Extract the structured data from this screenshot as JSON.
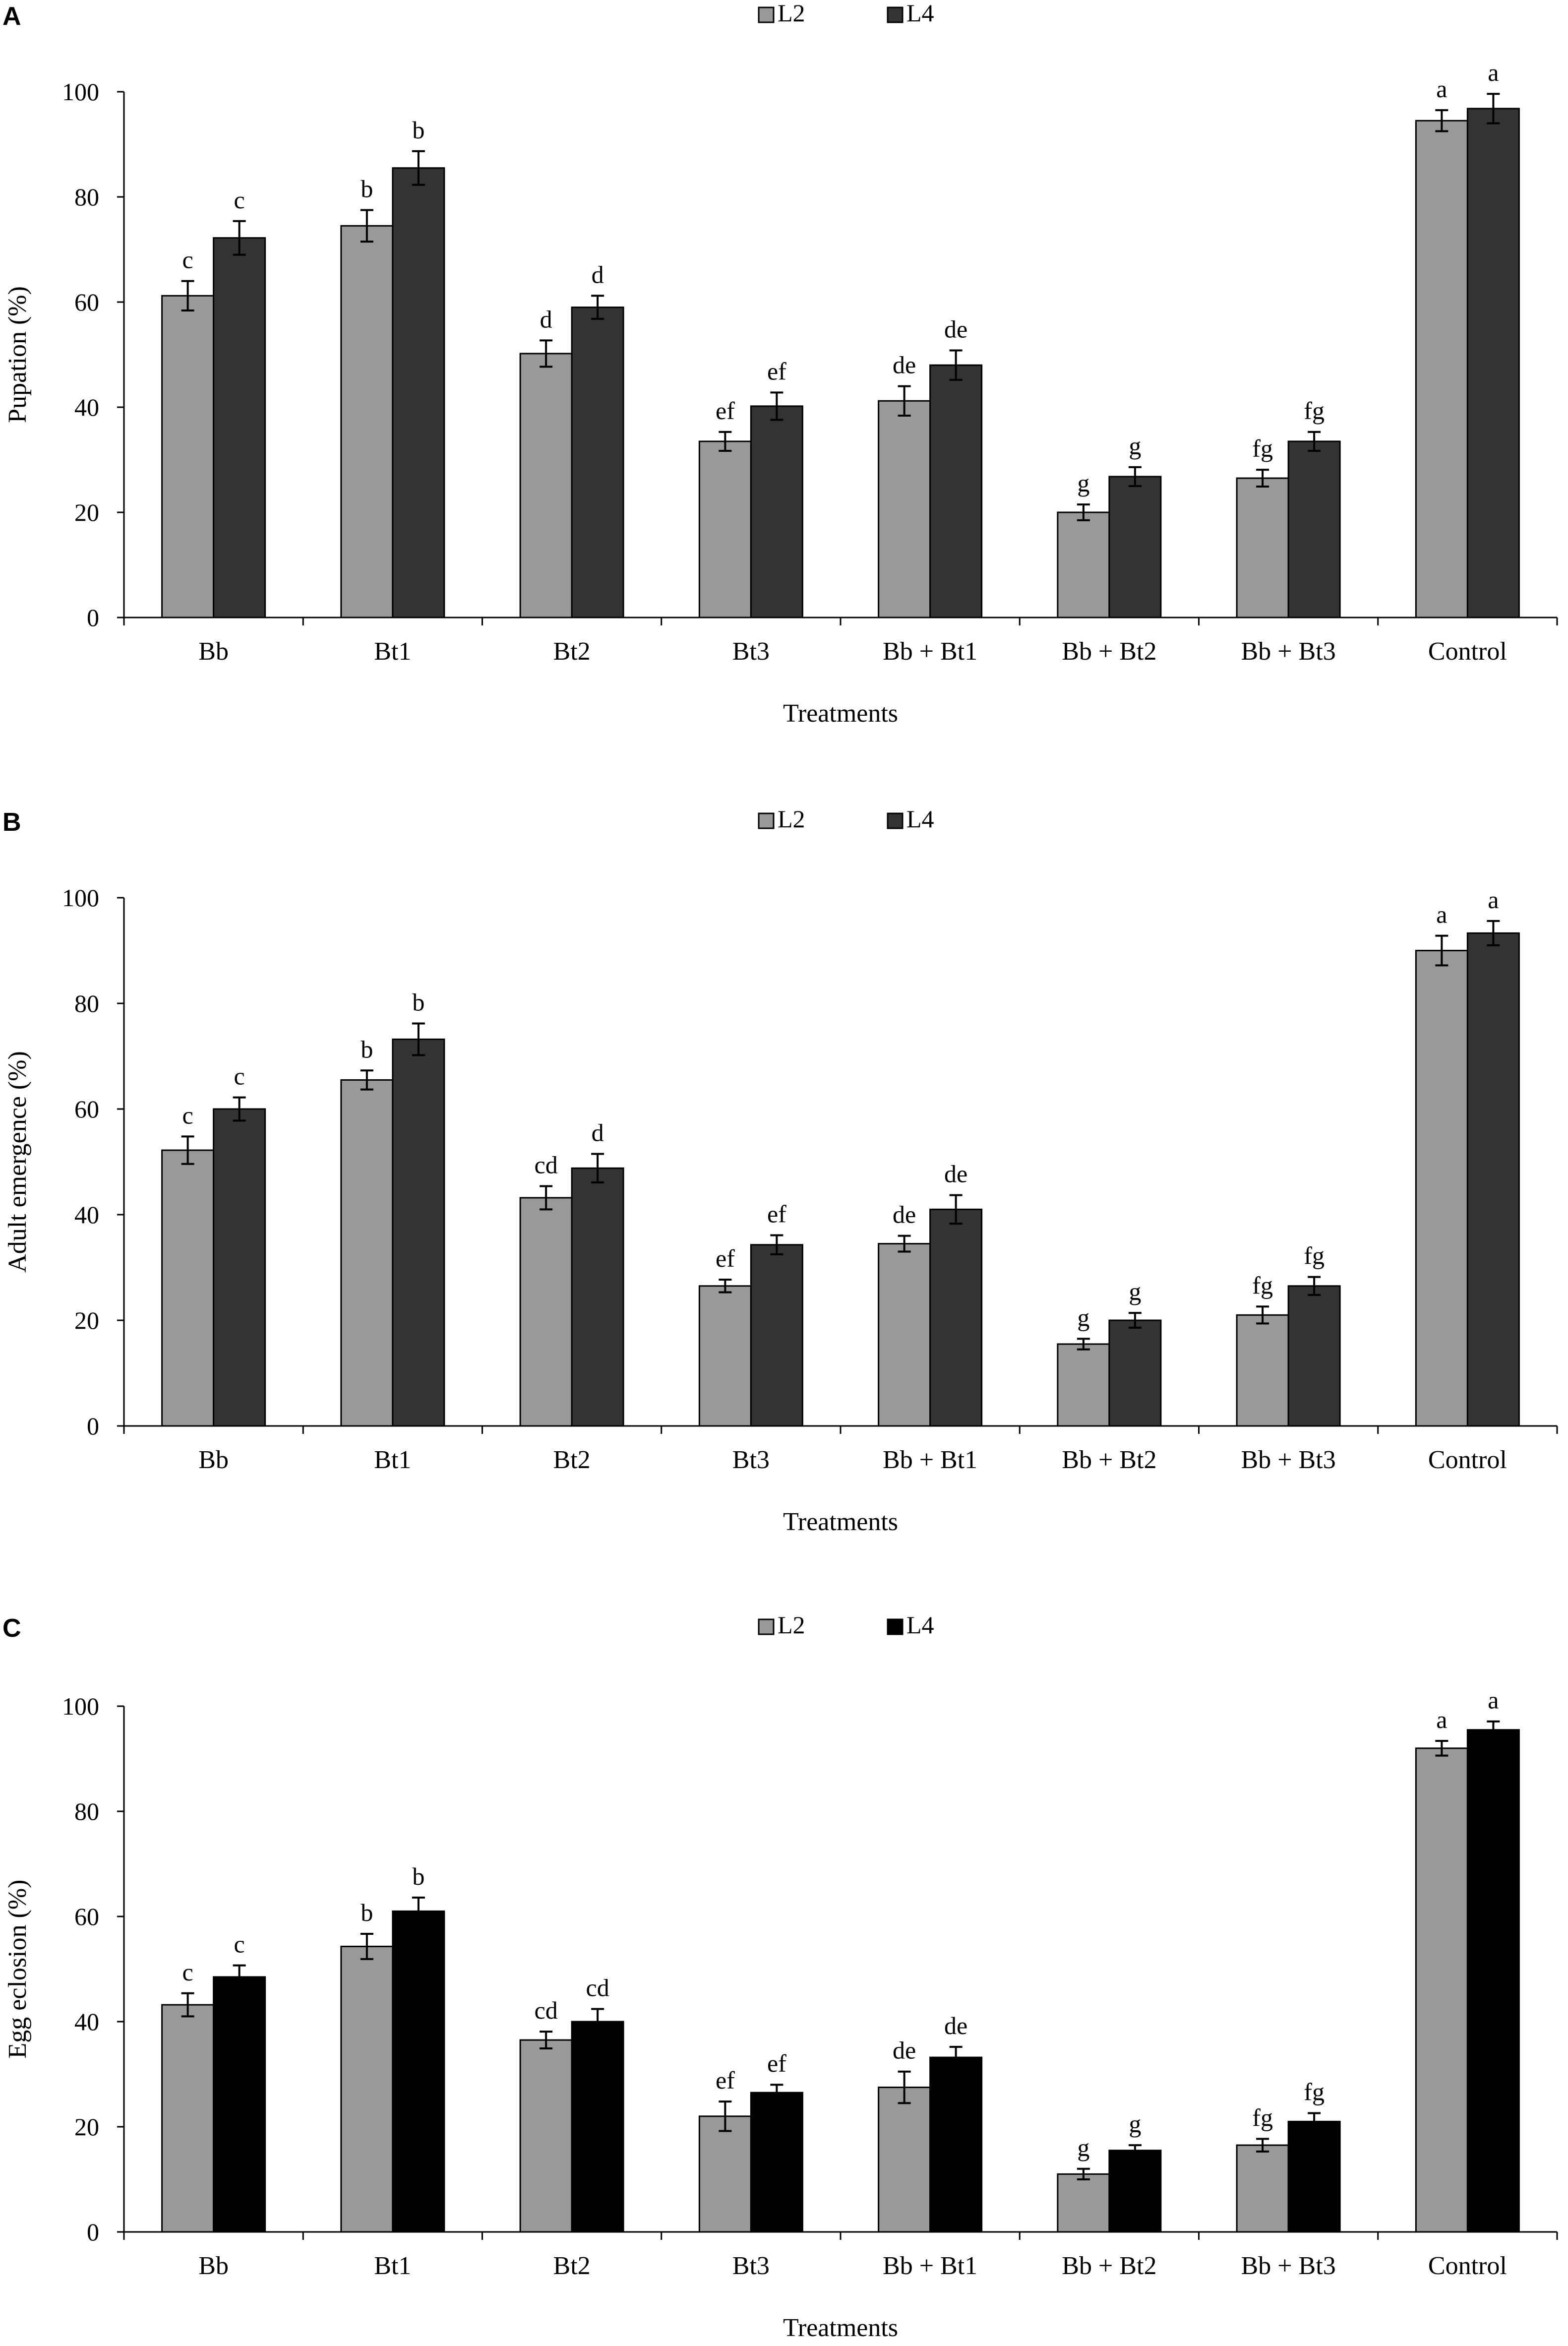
{
  "chart_data": [
    {
      "panel": "A",
      "type": "bar",
      "categories": [
        "Bb",
        "Bt1",
        "Bt2",
        "Bt3",
        "Bb + Bt1",
        "Bb + Bt2",
        "Bb + Bt3",
        "Control"
      ],
      "series": [
        {
          "name": "L2",
          "color": "#999999",
          "values": [
            61.2,
            74.5,
            50.2,
            33.5,
            41.2,
            20.0,
            26.5,
            94.5
          ],
          "errors": [
            2.8,
            3.0,
            2.5,
            1.8,
            2.8,
            1.5,
            1.6,
            2.0
          ],
          "labels": [
            "c",
            "b",
            "d",
            "ef",
            "de",
            "g",
            "fg",
            "a"
          ]
        },
        {
          "name": "L4",
          "color": "#333333",
          "values": [
            72.2,
            85.5,
            59.0,
            40.2,
            48.0,
            26.8,
            33.5,
            96.8
          ],
          "errors": [
            3.2,
            3.2,
            2.2,
            2.6,
            2.8,
            1.8,
            1.8,
            2.8
          ],
          "labels": [
            "c",
            "b",
            "d",
            "ef",
            "de",
            "g",
            "fg",
            "a"
          ]
        }
      ],
      "title": "",
      "xlabel": "Treatments",
      "ylabel": "Pupation (%)",
      "ylim": [
        0,
        100
      ],
      "yticks": [
        "0",
        "20",
        "40",
        "60",
        "80",
        "100"
      ],
      "legend": "top-center",
      "grid": false
    },
    {
      "panel": "B",
      "type": "bar",
      "categories": [
        "Bb",
        "Bt1",
        "Bt2",
        "Bt3",
        "Bb + Bt1",
        "Bb + Bt2",
        "Bb + Bt3",
        "Control"
      ],
      "series": [
        {
          "name": "L2",
          "color": "#999999",
          "values": [
            52.2,
            65.5,
            43.2,
            26.5,
            34.5,
            15.5,
            21.0,
            90.0
          ],
          "errors": [
            2.6,
            1.8,
            2.2,
            1.2,
            1.5,
            1.0,
            1.6,
            2.8
          ],
          "labels": [
            "c",
            "b",
            "cd",
            "ef",
            "de",
            "g",
            "fg",
            "a"
          ]
        },
        {
          "name": "L4",
          "color": "#333333",
          "values": [
            60.0,
            73.2,
            48.8,
            34.3,
            41.0,
            20.0,
            26.5,
            93.3
          ],
          "errors": [
            2.2,
            3.0,
            2.7,
            1.8,
            2.7,
            1.4,
            1.7,
            2.3
          ],
          "labels": [
            "c",
            "b",
            "d",
            "ef",
            "de",
            "g",
            "fg",
            "a"
          ]
        }
      ],
      "title": "",
      "xlabel": "Treatments",
      "ylabel": "Adult emergence (%)",
      "ylim": [
        0,
        100
      ],
      "yticks": [
        "0",
        "20",
        "40",
        "60",
        "80",
        "100"
      ],
      "legend": "top-center",
      "grid": false
    },
    {
      "panel": "C",
      "type": "bar",
      "categories": [
        "Bb",
        "Bt1",
        "Bt2",
        "Bt3",
        "Bb + Bt1",
        "Bb + Bt2",
        "Bb + Bt3",
        "Control"
      ],
      "series": [
        {
          "name": "L2",
          "color": "#999999",
          "values": [
            43.2,
            54.3,
            36.5,
            22.0,
            27.5,
            11.0,
            16.5,
            92.0
          ],
          "errors": [
            2.2,
            2.4,
            1.6,
            2.8,
            3.0,
            1.0,
            1.2,
            1.4
          ],
          "labels": [
            "c",
            "b",
            "cd",
            "ef",
            "de",
            "g",
            "fg",
            "a"
          ]
        },
        {
          "name": "L4",
          "color": "#000000",
          "values": [
            48.5,
            61.0,
            40.0,
            26.5,
            33.2,
            15.5,
            21.0,
            95.5
          ],
          "errors": [
            2.2,
            2.6,
            2.4,
            1.5,
            2.0,
            1.0,
            1.6,
            1.6
          ],
          "labels": [
            "c",
            "b",
            "cd",
            "ef",
            "de",
            "g",
            "fg",
            "a"
          ]
        }
      ],
      "title": "",
      "xlabel": "Treatments",
      "ylabel": "Egg eclosion (%)",
      "ylim": [
        0,
        100
      ],
      "yticks": [
        "0",
        "20",
        "40",
        "60",
        "80",
        "100"
      ],
      "legend": "top-center",
      "grid": false
    }
  ]
}
